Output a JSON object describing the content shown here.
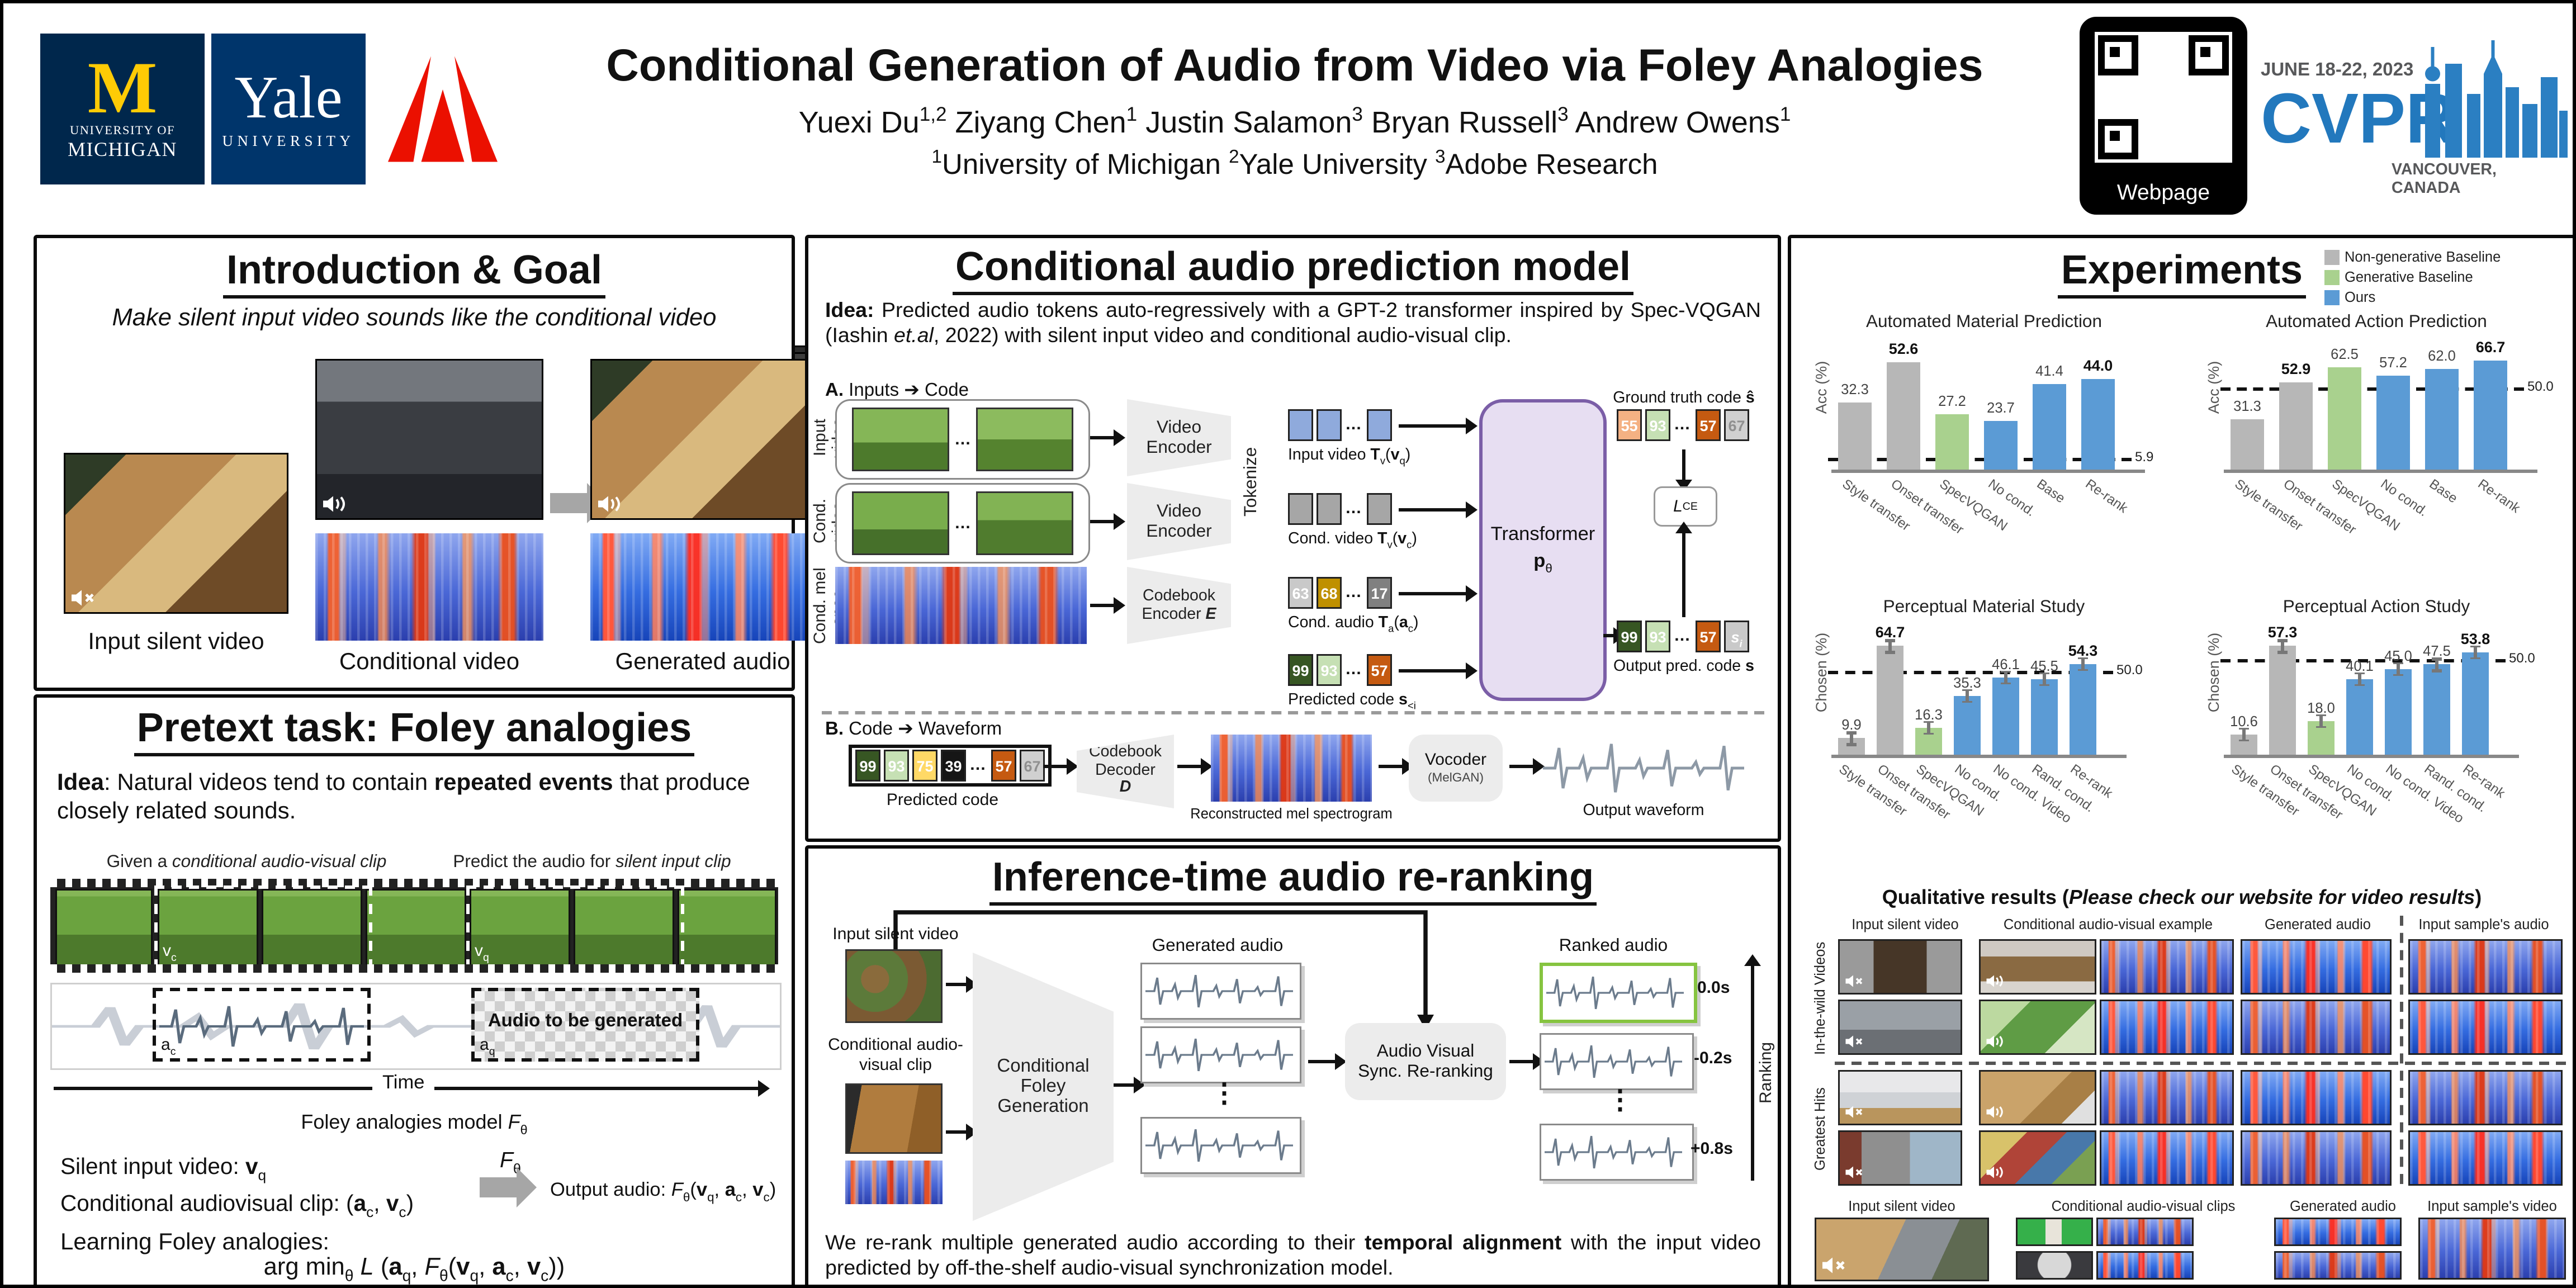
{
  "header": {
    "title": "Conditional Generation of Audio from Video via Foley Analogies",
    "authors": "Yuexi Du[sup]1,2[/sup]    Ziyang Chen[sup]1[/sup]    Justin Salamon[sup]3[/sup]    Bryan Russell[sup]3[/sup]    Andrew Owens[sup]1[/sup]",
    "affiliations": "[sup]1[/sup]University of Michigan    [sup]2[/sup]Yale University    [sup]3[/sup]Adobe Research",
    "logos": {
      "michigan_m": "M",
      "michigan_line1": "UNIVERSITY OF",
      "michigan_line2": "MICHIGAN",
      "yale_name": "Yale",
      "yale_sub": "UNIVERSITY"
    },
    "qr_label": "Webpage",
    "cvpr": {
      "dates": "JUNE 18-22, 2023",
      "name": "CVPR",
      "location": "VANCOUVER, CANADA"
    }
  },
  "intro": {
    "title": "Introduction & Goal",
    "subtitle": "Make silent input video sounds like the conditional video",
    "input_label": "Input silent video",
    "cond_label": "Conditional video",
    "gen_label": "Generated audio"
  },
  "pretext": {
    "title": "Pretext task: Foley analogies",
    "idea": "[b]Idea[/b]: Natural videos tend to contain [b]repeated events[/b] that produce closely related sounds.",
    "given_label": "Given a [i]conditional audio-visual clip[/i]",
    "predict_label": "Predict the audio for [i]silent input clip[/i]",
    "vc": "v[sub]c[/sub]",
    "vq": "v[sub]q[/sub]",
    "ac": "a[sub]c[/sub]",
    "aq": "a[sub]q[/sub]",
    "audio_to_gen": "[b]Audio to be generated[/b]",
    "time_label": "Time",
    "model_label": "Foley analogies model [i]F[/i][sub]θ[/sub]",
    "silent_line": "Silent input video: [b]v[/b][sub]q[/sub]",
    "cond_line": "Conditional audiovisual clip: ([b]a[/b][sub]c[/sub], [b]v[/b][sub]c[/sub])",
    "arrow_label": "[i]F[/i][sub]θ[/sub]",
    "output_line": "Output audio: [i]F[/i][sub]θ[/sub]([b]v[/b][sub]q[/sub], [b]a[/b][sub]c[/sub], [b]v[/b][sub]c[/sub])",
    "learning_label": "Learning Foley analogies:",
    "equation": "arg min[sub]θ[/sub] [i]L[/i] ([b]a[/b][sub]q[/sub], [i]F[/i][sub]θ[/sub]([b]v[/b][sub]q[/sub], [b]a[/b][sub]c[/sub], [b]v[/b][sub]c[/sub]))"
  },
  "model": {
    "title": "Conditional audio prediction model",
    "idea": "[b]Idea:[/b] Predicted audio tokens auto-regressively with a GPT-2 transformer inspired by Spec-VQGAN (Iashin [i]et.al[/i], 2022) with silent input video and conditional audio-visual clip.",
    "part_a": "[b]A.[/b] Inputs ➔ Code",
    "row_labels": [
      "Input video",
      "Cond. video",
      "Cond. mel spec."
    ],
    "enc_video1": "Video Encoder",
    "enc_video2": "Video Encoder",
    "enc_codebook": "Codebook Encoder [b][i]E[/i][/b]",
    "tokenize": "Tokenize",
    "tok_labels": [
      "Input video [b]T[/b][sub]v[/sub]([b]v[/b][sub]q[/sub])",
      "Cond. video [b]T[/b][sub]v[/sub]([b]v[/b][sub]c[/sub])",
      "Cond. audio [b]T[/b][sub]a[/sub]([b]a[/b][sub]c[/sub])",
      "Predicted code [b]s[/b][sub]&lt;i[/sub]"
    ],
    "transformer": "Transformer",
    "transformer_sub": "[b]p[/b][sub]θ[/sub]",
    "gt_label": "Ground truth code [b]ŝ[/b]",
    "loss": "[i]L[/i][sub]CE[/sub]",
    "out_label": "Output pred. code [b]s[/b]",
    "tokens": {
      "input": [
        {
          "v": "",
          "cls": "tok",
          "bg": "#8faadc"
        },
        {
          "v": "",
          "cls": "tok",
          "bg": "#8faadc"
        },
        {
          "v": "…",
          "cls": "dots"
        },
        {
          "v": "",
          "cls": "tok",
          "bg": "#8faadc"
        }
      ],
      "cond": [
        {
          "v": "",
          "cls": "tok",
          "bg": "#a6a6a6"
        },
        {
          "v": "",
          "cls": "tok",
          "bg": "#a6a6a6"
        },
        {
          "v": "…",
          "cls": "dots"
        },
        {
          "v": "",
          "cls": "tok",
          "bg": "#a6a6a6"
        }
      ],
      "audio": [
        {
          "v": "63",
          "cls": "tok",
          "bg": "#c9c9c9",
          "fg": "#ffffff"
        },
        {
          "v": "68",
          "cls": "tok",
          "bg": "#bf9000",
          "fg": "#ffffff"
        },
        {
          "v": "…",
          "cls": "dots"
        },
        {
          "v": "17",
          "cls": "tok",
          "bg": "#808080",
          "fg": "#ffffff"
        }
      ],
      "pred": [
        {
          "v": "99",
          "cls": "tok",
          "bg": "#375623",
          "fg": "#ffffff"
        },
        {
          "v": "93",
          "cls": "tok",
          "bg": "#c6e0b4",
          "fg": "#ffffff"
        },
        {
          "v": "…",
          "cls": "dots"
        },
        {
          "v": "57",
          "cls": "tok",
          "bg": "#c55a11",
          "fg": "#ffffff"
        }
      ],
      "gt": [
        {
          "v": "55",
          "cls": "tok",
          "bg": "#f4b183",
          "fg": "#ffffff"
        },
        {
          "v": "93",
          "cls": "tok",
          "bg": "#c6e0b4",
          "fg": "#ffffff"
        },
        {
          "v": "…",
          "cls": "dots"
        },
        {
          "v": "57",
          "cls": "tok",
          "bg": "#c55a11",
          "fg": "#ffffff"
        },
        {
          "v": "67",
          "cls": "tok",
          "bg": "#d0d0d0",
          "fg": "#909090"
        }
      ],
      "out": [
        {
          "v": "99",
          "cls": "tok",
          "bg": "#375623",
          "fg": "#ffffff"
        },
        {
          "v": "93",
          "cls": "tok",
          "bg": "#c6e0b4",
          "fg": "#ffffff"
        },
        {
          "v": "…",
          "cls": "dots"
        },
        {
          "v": "57",
          "cls": "tok",
          "bg": "#c55a11",
          "fg": "#ffffff"
        },
        {
          "v": "[i]s[sub]i[/sub][/i]",
          "cls": "tok",
          "bg": "#c9c9c9",
          "fg": "#ffffff"
        }
      ],
      "b": [
        {
          "v": "99",
          "cls": "tok",
          "bg": "#375623",
          "fg": "#ffffff"
        },
        {
          "v": "93",
          "cls": "tok",
          "bg": "#c6e0b4",
          "fg": "#ffffff"
        },
        {
          "v": "75",
          "cls": "tok",
          "bg": "#ffd966",
          "fg": "#ffffff"
        },
        {
          "v": "39",
          "cls": "tok",
          "bg": "#161616",
          "fg": "#ffffff"
        },
        {
          "v": "…",
          "cls": "dots"
        },
        {
          "v": "57",
          "cls": "tok",
          "bg": "#c55a11",
          "fg": "#ffffff"
        },
        {
          "v": "67",
          "cls": "tok",
          "bg": "#d0d0d0",
          "fg": "#909090"
        }
      ]
    },
    "part_b": "[b]B.[/b] Code ➔ Waveform",
    "pred_code_label": "Predicted code",
    "decoder_l1": "Codebook",
    "decoder_l2": "Decoder",
    "decoder_l3": "[b][i]D[/i][/b]",
    "recon_label": "Reconstructed mel spectrogram",
    "vocoder": "Vocoder",
    "vocoder_sub": "(MelGAN)",
    "waveform_label": "Output waveform"
  },
  "rerank": {
    "title": "Inference-time audio re-ranking",
    "input_label": "Input silent video",
    "cond_label": "Conditional audio-visual clip",
    "gen_module": "Conditional Foley Generation",
    "gen_label": "Generated audio",
    "sync_module": "Audio Visual Sync. Re-ranking",
    "ranked_label": "Ranked audio",
    "offsets": [
      "0.0s",
      "-0.2s",
      "+0.8s"
    ],
    "ranking_label": "Ranking",
    "note": "We re-rank multiple generated audio according to their [b]temporal alignment[/b] with the input video predicted by off-the-shelf audio-visual synchronization model."
  },
  "experiments": {
    "title": "Experiments",
    "legend": [
      {
        "label": "Non-generative Baseline",
        "color": "#b7b7b7"
      },
      {
        "label": "Generative Baseline",
        "color": "#a9d18e"
      },
      {
        "label": "Ours",
        "color": "#5b9bd5"
      }
    ],
    "chart_data": [
      {
        "type": "bar",
        "title": "Automated Material Prediction",
        "ylabel": "Acc (%)",
        "categories": [
          "Style transfer",
          "Onset transfer",
          "SpecVQGAN",
          "No cond.",
          "Base",
          "Re-rank"
        ],
        "values": [
          32.3,
          52.6,
          27.2,
          23.7,
          41.4,
          44.0
        ],
        "bar_colors": [
          "#b7b7b7",
          "#b7b7b7",
          "#a9d18e",
          "#5b9bd5",
          "#5b9bd5",
          "#5b9bd5"
        ],
        "bold": [
          false,
          true,
          false,
          false,
          false,
          true
        ],
        "ref_line": 5.9,
        "ref_label": "5.9",
        "ylim": [
          0,
          62
        ],
        "error_bars": false
      },
      {
        "type": "bar",
        "title": "Automated Action Prediction",
        "ylabel": "Acc (%)",
        "categories": [
          "Style transfer",
          "Onset transfer",
          "SpecVQGAN",
          "No cond.",
          "Base",
          "Re-rank"
        ],
        "values": [
          31.3,
          52.9,
          62.5,
          57.2,
          62.0,
          66.7
        ],
        "bar_colors": [
          "#b7b7b7",
          "#b7b7b7",
          "#a9d18e",
          "#5b9bd5",
          "#5b9bd5",
          "#5b9bd5"
        ],
        "bold": [
          false,
          true,
          false,
          false,
          false,
          true
        ],
        "ref_line": 50.0,
        "ref_label": "50.0",
        "ylim": [
          0,
          78
        ],
        "error_bars": false
      },
      {
        "type": "bar",
        "title": "Perceptual Material Study",
        "ylabel": "Chosen (%)",
        "categories": [
          "Style transfer",
          "Onset transfer",
          "SpecVQGAN",
          "No cond.",
          "No cond. Video",
          "Rand. cond.",
          "Re-rank"
        ],
        "values": [
          9.9,
          64.7,
          16.3,
          35.3,
          46.1,
          45.5,
          54.3
        ],
        "bar_colors": [
          "#b7b7b7",
          "#b7b7b7",
          "#a9d18e",
          "#5b9bd5",
          "#5b9bd5",
          "#5b9bd5",
          "#5b9bd5"
        ],
        "bold": [
          false,
          true,
          false,
          false,
          false,
          false,
          true
        ],
        "ref_line": 50.0,
        "ref_label": "50.0",
        "ylim": [
          0,
          76
        ],
        "error_bars": true
      },
      {
        "type": "bar",
        "title": "Perceptual Action Study",
        "ylabel": "Chosen (%)",
        "categories": [
          "Style transfer",
          "Onset transfer",
          "SpecVQGAN",
          "No cond.",
          "No cond. Video",
          "Rand. cond.",
          "Re-rank"
        ],
        "values": [
          10.6,
          57.3,
          18.0,
          40.1,
          45.0,
          47.5,
          53.8
        ],
        "bar_colors": [
          "#b7b7b7",
          "#b7b7b7",
          "#a9d18e",
          "#5b9bd5",
          "#5b9bd5",
          "#5b9bd5",
          "#5b9bd5"
        ],
        "bold": [
          false,
          true,
          false,
          false,
          false,
          false,
          true
        ],
        "ref_line": 50.0,
        "ref_label": "50.0",
        "ylim": [
          0,
          67
        ],
        "error_bars": true
      }
    ],
    "qualitative_title": "[b]Qualitative results ([i]Please check our website for video results[/i])[/b]",
    "top_headers": [
      "Input silent video",
      "Conditional audio-visual example",
      "Generated audio",
      "Input sample's audio"
    ],
    "row_groups": [
      "In-the-wild Videos",
      "Greatest Hits"
    ],
    "bottom_headers": [
      "Input silent video",
      "Conditional audio-visual clips",
      "Generated audio",
      "Input sample's video"
    ]
  }
}
